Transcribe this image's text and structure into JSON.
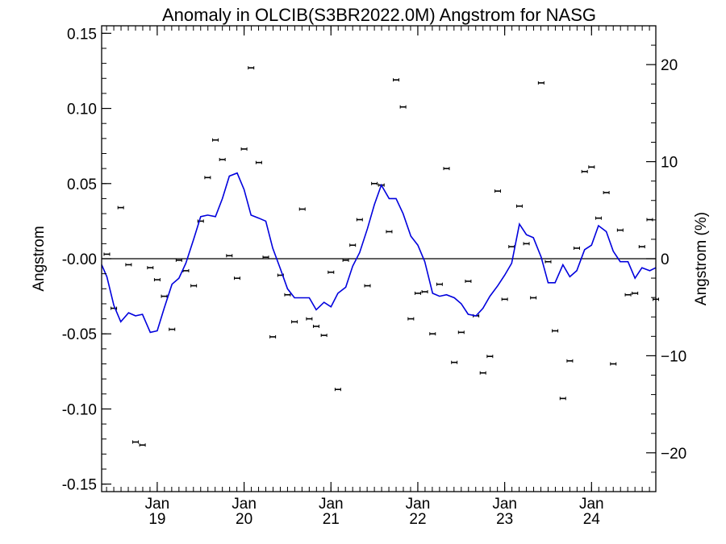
{
  "chart_data": {
    "type": "scatter",
    "title": "Anomaly in OLCIB(S3BR2022.0M) Angstrom for NASG",
    "ylabel": "Angstrom",
    "y2label": "Angstrom (%)",
    "ylim": [
      -0.155,
      0.155
    ],
    "y2lim": [
      -24,
      24
    ],
    "xlim": [
      2018.36,
      2024.74
    ],
    "yticks": [
      {
        "v": 0.15,
        "label": "0.15"
      },
      {
        "v": 0.1,
        "label": "0.10"
      },
      {
        "v": 0.05,
        "label": "0.05"
      },
      {
        "v": 0.0,
        "label": "-0.00"
      },
      {
        "v": -0.05,
        "label": "-0.05"
      },
      {
        "v": -0.1,
        "label": "-0.10"
      },
      {
        "v": -0.15,
        "label": "-0.15"
      }
    ],
    "y2ticks": [
      {
        "v": 20,
        "label": "20"
      },
      {
        "v": 10,
        "label": "10"
      },
      {
        "v": 0,
        "label": "0"
      },
      {
        "v": -10,
        "label": "−10"
      },
      {
        "v": -20,
        "label": "−20"
      }
    ],
    "xticks": [
      {
        "v": 2019.0,
        "month": "Jan",
        "year": "19"
      },
      {
        "v": 2020.0,
        "month": "Jan",
        "year": "20"
      },
      {
        "v": 2021.0,
        "month": "Jan",
        "year": "21"
      },
      {
        "v": 2022.0,
        "month": "Jan",
        "year": "22"
      },
      {
        "v": 2023.0,
        "month": "Jan",
        "year": "23"
      },
      {
        "v": 2024.0,
        "month": "Jan",
        "year": "24"
      }
    ],
    "points": [
      [
        2018.42,
        0.003
      ],
      [
        2018.5,
        -0.033
      ],
      [
        2018.58,
        0.034
      ],
      [
        2018.67,
        -0.004
      ],
      [
        2018.75,
        -0.122
      ],
      [
        2018.83,
        -0.124
      ],
      [
        2018.92,
        -0.006
      ],
      [
        2019.0,
        -0.014
      ],
      [
        2019.08,
        -0.025
      ],
      [
        2019.17,
        -0.047
      ],
      [
        2019.25,
        -0.001
      ],
      [
        2019.33,
        -0.008
      ],
      [
        2019.42,
        -0.018
      ],
      [
        2019.5,
        0.025
      ],
      [
        2019.58,
        0.054
      ],
      [
        2019.67,
        0.079
      ],
      [
        2019.75,
        0.066
      ],
      [
        2019.83,
        0.002
      ],
      [
        2019.92,
        -0.013
      ],
      [
        2020.0,
        0.073
      ],
      [
        2020.08,
        0.127
      ],
      [
        2020.17,
        0.064
      ],
      [
        2020.25,
        0.001
      ],
      [
        2020.33,
        -0.052
      ],
      [
        2020.42,
        -0.011
      ],
      [
        2020.5,
        -0.024
      ],
      [
        2020.58,
        -0.042
      ],
      [
        2020.67,
        0.033
      ],
      [
        2020.75,
        -0.04
      ],
      [
        2020.83,
        -0.045
      ],
      [
        2020.92,
        -0.051
      ],
      [
        2021.0,
        -0.009
      ],
      [
        2021.08,
        -0.087
      ],
      [
        2021.17,
        -0.001
      ],
      [
        2021.25,
        0.009
      ],
      [
        2021.33,
        0.026
      ],
      [
        2021.42,
        -0.018
      ],
      [
        2021.5,
        0.05
      ],
      [
        2021.58,
        0.049
      ],
      [
        2021.67,
        0.018
      ],
      [
        2021.75,
        0.119
      ],
      [
        2021.83,
        0.101
      ],
      [
        2021.92,
        -0.04
      ],
      [
        2022.0,
        -0.023
      ],
      [
        2022.08,
        -0.022
      ],
      [
        2022.17,
        -0.05
      ],
      [
        2022.25,
        -0.017
      ],
      [
        2022.33,
        0.06
      ],
      [
        2022.42,
        -0.069
      ],
      [
        2022.5,
        -0.049
      ],
      [
        2022.58,
        -0.015
      ],
      [
        2022.67,
        -0.038
      ],
      [
        2022.75,
        -0.076
      ],
      [
        2022.83,
        -0.065
      ],
      [
        2022.92,
        0.045
      ],
      [
        2023.0,
        -0.027
      ],
      [
        2023.08,
        0.008
      ],
      [
        2023.17,
        0.035
      ],
      [
        2023.25,
        0.01
      ],
      [
        2023.33,
        -0.026
      ],
      [
        2023.42,
        0.117
      ],
      [
        2023.5,
        -0.002
      ],
      [
        2023.58,
        -0.048
      ],
      [
        2023.67,
        -0.093
      ],
      [
        2023.75,
        -0.068
      ],
      [
        2023.83,
        0.007
      ],
      [
        2023.92,
        0.058
      ],
      [
        2024.0,
        0.061
      ],
      [
        2024.08,
        0.027
      ],
      [
        2024.17,
        0.044
      ],
      [
        2024.25,
        -0.07
      ],
      [
        2024.33,
        0.019
      ],
      [
        2024.42,
        -0.024
      ],
      [
        2024.5,
        -0.023
      ],
      [
        2024.58,
        0.008
      ],
      [
        2024.67,
        0.026
      ],
      [
        2024.74,
        -0.027
      ]
    ],
    "line": [
      [
        2018.36,
        -0.004
      ],
      [
        2018.42,
        -0.012
      ],
      [
        2018.5,
        -0.031
      ],
      [
        2018.58,
        -0.042
      ],
      [
        2018.67,
        -0.036
      ],
      [
        2018.75,
        -0.038
      ],
      [
        2018.83,
        -0.037
      ],
      [
        2018.92,
        -0.049
      ],
      [
        2019.0,
        -0.048
      ],
      [
        2019.08,
        -0.033
      ],
      [
        2019.17,
        -0.017
      ],
      [
        2019.25,
        -0.013
      ],
      [
        2019.33,
        -0.003
      ],
      [
        2019.42,
        0.013
      ],
      [
        2019.5,
        0.028
      ],
      [
        2019.58,
        0.029
      ],
      [
        2019.67,
        0.028
      ],
      [
        2019.75,
        0.04
      ],
      [
        2019.83,
        0.055
      ],
      [
        2019.92,
        0.057
      ],
      [
        2020.0,
        0.046
      ],
      [
        2020.08,
        0.029
      ],
      [
        2020.17,
        0.027
      ],
      [
        2020.25,
        0.025
      ],
      [
        2020.33,
        0.007
      ],
      [
        2020.42,
        -0.007
      ],
      [
        2020.5,
        -0.02
      ],
      [
        2020.58,
        -0.026
      ],
      [
        2020.67,
        -0.026
      ],
      [
        2020.75,
        -0.026
      ],
      [
        2020.83,
        -0.034
      ],
      [
        2020.92,
        -0.029
      ],
      [
        2021.0,
        -0.032
      ],
      [
        2021.08,
        -0.023
      ],
      [
        2021.17,
        -0.019
      ],
      [
        2021.25,
        -0.005
      ],
      [
        2021.33,
        0.004
      ],
      [
        2021.42,
        0.02
      ],
      [
        2021.5,
        0.036
      ],
      [
        2021.58,
        0.049
      ],
      [
        2021.67,
        0.04
      ],
      [
        2021.75,
        0.04
      ],
      [
        2021.83,
        0.03
      ],
      [
        2021.92,
        0.015
      ],
      [
        2022.0,
        0.009
      ],
      [
        2022.08,
        -0.002
      ],
      [
        2022.17,
        -0.023
      ],
      [
        2022.25,
        -0.025
      ],
      [
        2022.33,
        -0.024
      ],
      [
        2022.42,
        -0.026
      ],
      [
        2022.5,
        -0.03
      ],
      [
        2022.58,
        -0.037
      ],
      [
        2022.67,
        -0.038
      ],
      [
        2022.75,
        -0.033
      ],
      [
        2022.83,
        -0.025
      ],
      [
        2022.92,
        -0.018
      ],
      [
        2023.0,
        -0.011
      ],
      [
        2023.08,
        -0.003
      ],
      [
        2023.17,
        0.023
      ],
      [
        2023.25,
        0.016
      ],
      [
        2023.33,
        0.014
      ],
      [
        2023.42,
        0.001
      ],
      [
        2023.5,
        -0.016
      ],
      [
        2023.58,
        -0.016
      ],
      [
        2023.67,
        -0.004
      ],
      [
        2023.75,
        -0.012
      ],
      [
        2023.83,
        -0.008
      ],
      [
        2023.92,
        0.006
      ],
      [
        2024.0,
        0.009
      ],
      [
        2024.08,
        0.022
      ],
      [
        2024.17,
        0.018
      ],
      [
        2024.25,
        0.005
      ],
      [
        2024.33,
        -0.002
      ],
      [
        2024.42,
        -0.002
      ],
      [
        2024.5,
        -0.013
      ],
      [
        2024.58,
        -0.006
      ],
      [
        2024.67,
        -0.008
      ],
      [
        2024.74,
        -0.006
      ]
    ],
    "reference_line": 0,
    "colors": {
      "line": "#0000dd",
      "points": "#000000",
      "axes": "#000000",
      "zero_line": "#000000"
    },
    "grid": false,
    "legend": "none"
  }
}
